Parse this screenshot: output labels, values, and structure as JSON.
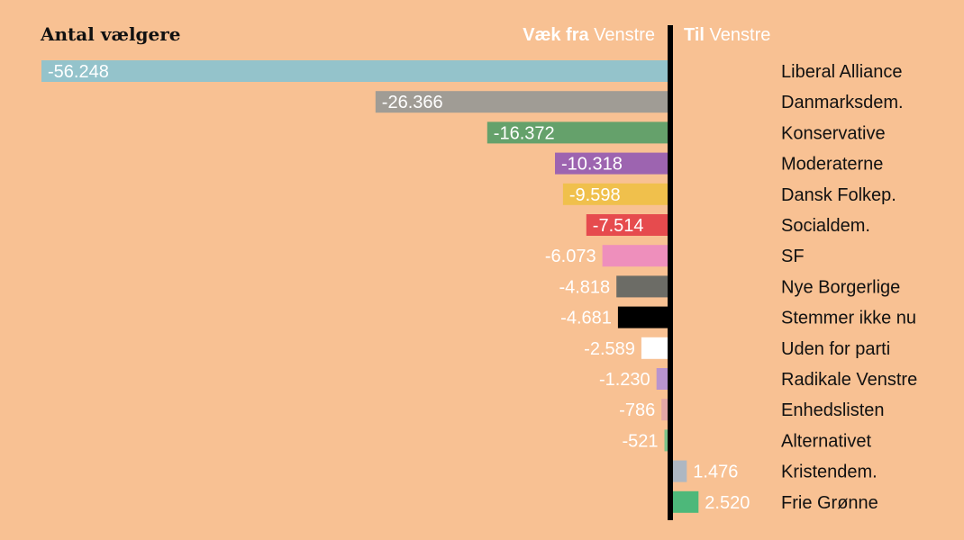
{
  "chart_data": {
    "type": "bar",
    "orientation": "horizontal",
    "title": "Antal vælgere",
    "header_left": {
      "bold": "Væk fra",
      "regular": " Venstre"
    },
    "header_right": {
      "bold": "Til",
      "regular": " Venstre"
    },
    "xlim": [
      -56248,
      2520
    ],
    "grid": false,
    "categories": [
      "Liberal Alliance",
      "Danmarksdem.",
      "Konservative",
      "Moderaterne",
      "Dansk Folkep.",
      "Socialdem.",
      "SF",
      "Nye Borgerlige",
      "Stemmer ikke nu",
      "Uden for parti",
      "Radikale Venstre",
      "Enhedslisten",
      "Alternativet",
      "Kristendem.",
      "Frie Grønne"
    ],
    "values": [
      -56248,
      -26366,
      -16372,
      -10318,
      -9598,
      -7514,
      -6073,
      -4818,
      -4681,
      -2589,
      -1230,
      -786,
      -521,
      1476,
      2520
    ],
    "value_labels": [
      "-56.248",
      "-26.366",
      "-16.372",
      "-10.318",
      "-9.598",
      "-7.514",
      "-6.073",
      "-4.818",
      "-4.681",
      "-2.589",
      "-1.230",
      "-786",
      "-521",
      "1.476",
      "2.520"
    ],
    "colors": [
      "#94C3CB",
      "#A09C95",
      "#65A16B",
      "#9D64B0",
      "#F0C04C",
      "#E64B4E",
      "#EE8FBC",
      "#6C6C66",
      "#000000",
      "#FFFFFF",
      "#B894CE",
      "#E3A6A6",
      "#7DC48A",
      "#AEB7C2",
      "#4DB87A"
    ]
  }
}
